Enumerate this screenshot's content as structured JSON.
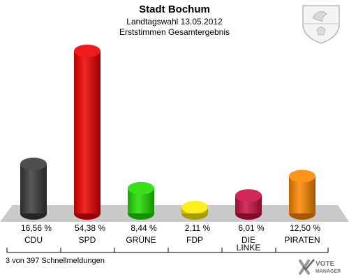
{
  "header": {
    "title": "Stadt Bochum",
    "subtitle1": "Landtagswahl 13.05.2012",
    "subtitle2": "Erststimmen Gesamtergebnis"
  },
  "footer": {
    "status": "3 von 397 Schnellmeldungen"
  },
  "logo": {
    "line1": "VOTE",
    "line2": "MANAGER"
  },
  "chart_data": {
    "type": "bar",
    "title": "Stadt Bochum",
    "subtitle": "Landtagswahl 13.05.2012 – Erststimmen Gesamtergebnis",
    "categories": [
      "CDU",
      "SPD",
      "GRÜNE",
      "FDP",
      "DIE LINKE",
      "PIRATEN"
    ],
    "values": [
      16.56,
      54.38,
      8.44,
      2.11,
      6.01,
      12.5
    ],
    "value_labels": [
      "16,56 %",
      "54,38 %",
      "8,44 %",
      "2,11 %",
      "6,01 %",
      "12,50 %"
    ],
    "colors": [
      "#3a3a3a",
      "#ee0000",
      "#22dd00",
      "#ffee00",
      "#cc1144",
      "#ff8800"
    ],
    "ylim": [
      0,
      56
    ],
    "grid": false,
    "legend": "none"
  }
}
